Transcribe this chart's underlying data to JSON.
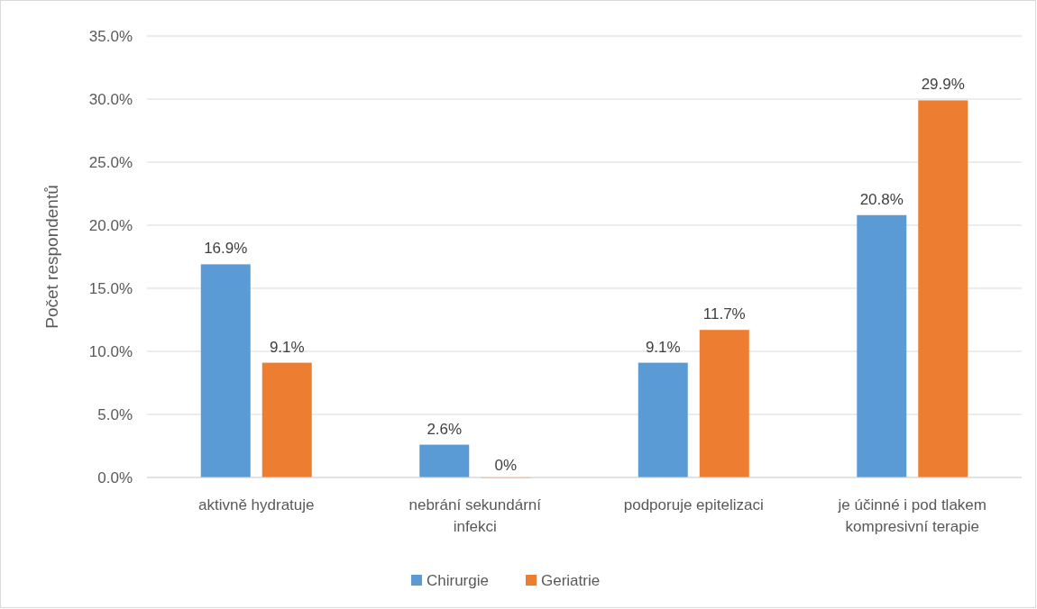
{
  "chart_data": {
    "type": "bar",
    "ylabel": "Počet respondentů",
    "categories": [
      "aktivně hydratuje",
      "nebrání sekundární infekci",
      "podporuje epitelizaci",
      "je účinné i pod tlakem kompresivní terapie"
    ],
    "series": [
      {
        "name": "Chirurgie",
        "color": "#5b9bd5",
        "values": [
          16.9,
          2.6,
          9.1,
          20.8
        ],
        "value_labels": [
          "16.9%",
          "2.6%",
          "9.1%",
          "20.8%"
        ]
      },
      {
        "name": "Geriatrie",
        "color": "#ed7d31",
        "values": [
          9.1,
          0,
          11.7,
          29.9
        ],
        "value_labels": [
          "9.1%",
          "0%",
          "11.7%",
          "29.9%"
        ]
      }
    ],
    "ylim": [
      0,
      35
    ],
    "yticks": [
      {
        "value": 0,
        "label": "0.0%"
      },
      {
        "value": 5,
        "label": "5.0%"
      },
      {
        "value": 10,
        "label": "10.0%"
      },
      {
        "value": 15,
        "label": "15.0%"
      },
      {
        "value": 20,
        "label": "20.0%"
      },
      {
        "value": 25,
        "label": "25.0%"
      },
      {
        "value": 30,
        "label": "30.0%"
      },
      {
        "value": 35,
        "label": "35.0%"
      }
    ],
    "grid": "y",
    "legend": "bottom"
  }
}
